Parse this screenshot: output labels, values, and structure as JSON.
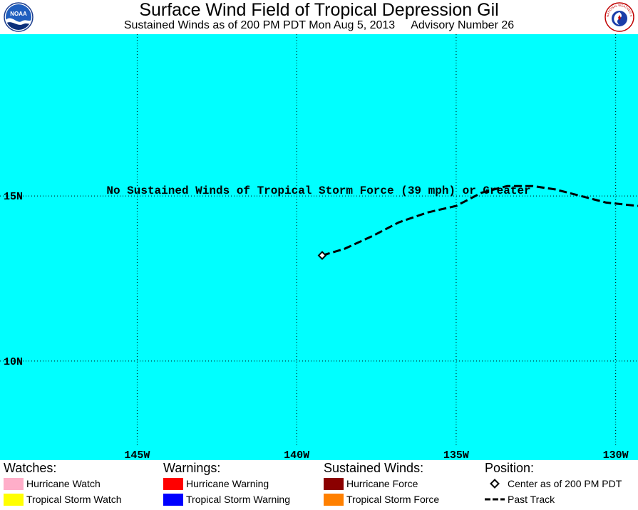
{
  "header": {
    "title": "Surface Wind Field of Tropical Depression Gil",
    "subtitle_left": "Sustained Winds as of 200 PM PDT Mon Aug 5, 2013",
    "subtitle_right": "Advisory Number 26",
    "left_logo_text": "NOAA",
    "right_logo_text": "NATIONAL WEATHER SERVICE"
  },
  "map": {
    "ocean_color": "#00ffff",
    "grid_color": "#000000",
    "lat_labels": [
      "15N",
      "10N"
    ],
    "lon_labels": [
      "145W",
      "140W",
      "135W",
      "130W"
    ],
    "message": "No Sustained Winds of Tropical Storm Force (39 mph) or Greater",
    "lat_range": [
      7.0,
      19.9
    ],
    "lon_range": [
      -149.3,
      -129.3
    ],
    "center": {
      "lon": -139.2,
      "lat": 13.2
    },
    "past_track": [
      [
        -139.2,
        13.2
      ],
      [
        -138.5,
        13.4
      ],
      [
        -137.6,
        13.8
      ],
      [
        -136.8,
        14.2
      ],
      [
        -135.9,
        14.5
      ],
      [
        -135.0,
        14.7
      ],
      [
        -134.2,
        15.1
      ],
      [
        -133.4,
        15.3
      ],
      [
        -132.6,
        15.3
      ],
      [
        -131.9,
        15.2
      ],
      [
        -131.1,
        15.0
      ],
      [
        -130.3,
        14.8
      ],
      [
        -129.3,
        14.7
      ]
    ]
  },
  "legend": {
    "watches": {
      "heading": "Watches:",
      "items": [
        {
          "label": "Hurricane Watch",
          "color": "#ffaec9"
        },
        {
          "label": "Tropical Storm Watch",
          "color": "#ffff00"
        }
      ]
    },
    "warnings": {
      "heading": "Warnings:",
      "items": [
        {
          "label": "Hurricane Warning",
          "color": "#ff0000"
        },
        {
          "label": "Tropical Storm Warning",
          "color": "#0000ff"
        }
      ]
    },
    "winds": {
      "heading": "Sustained Winds:",
      "items": [
        {
          "label": "Hurricane Force",
          "color": "#8b0000"
        },
        {
          "label": "Tropical Storm Force",
          "color": "#ff8000"
        }
      ]
    },
    "position": {
      "heading": "Position:",
      "center_label": "Center as of 200 PM PDT",
      "track_label": "Past Track"
    }
  }
}
